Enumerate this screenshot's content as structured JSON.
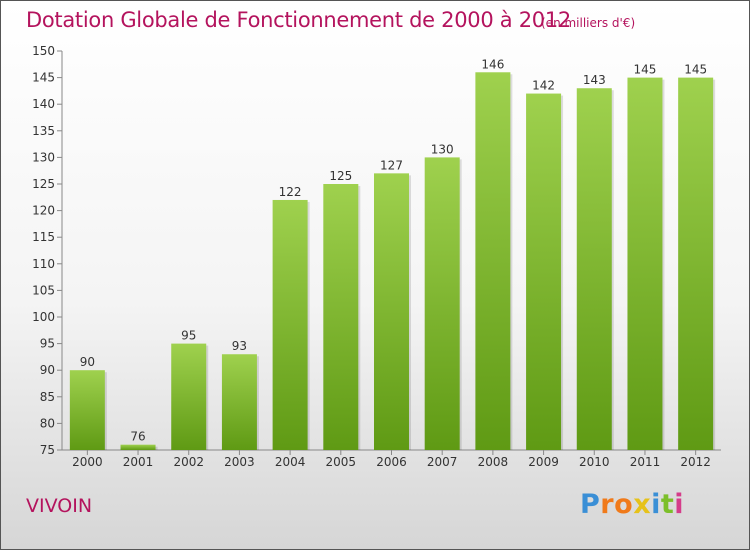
{
  "title": "Dotation Globale de Fonctionnement de 2000 à 2012",
  "unit": "(en milliers d'€)",
  "commune": "VIVOIN",
  "logo": {
    "letters": [
      "P",
      "r",
      "o",
      "x",
      "i",
      "t",
      "i"
    ],
    "colors": [
      "#3a8fd6",
      "#f07a1a",
      "#f07a1a",
      "#e6c21a",
      "#3a8fd6",
      "#7cbf2a",
      "#d53c8a"
    ]
  },
  "colors": {
    "bar_light": "#9fd14e",
    "bar_dark": "#5f9a14",
    "title": "#b4135d"
  },
  "chart_data": {
    "type": "bar",
    "categories": [
      "2000",
      "2001",
      "2002",
      "2003",
      "2004",
      "2005",
      "2006",
      "2007",
      "2008",
      "2009",
      "2010",
      "2011",
      "2012"
    ],
    "values": [
      90,
      76,
      95,
      93,
      122,
      125,
      127,
      130,
      146,
      142,
      143,
      145,
      145
    ],
    "ylim": [
      75,
      150
    ],
    "yticks": [
      75,
      80,
      85,
      90,
      95,
      100,
      105,
      110,
      115,
      120,
      125,
      130,
      135,
      140,
      145,
      150
    ],
    "grid": false
  }
}
